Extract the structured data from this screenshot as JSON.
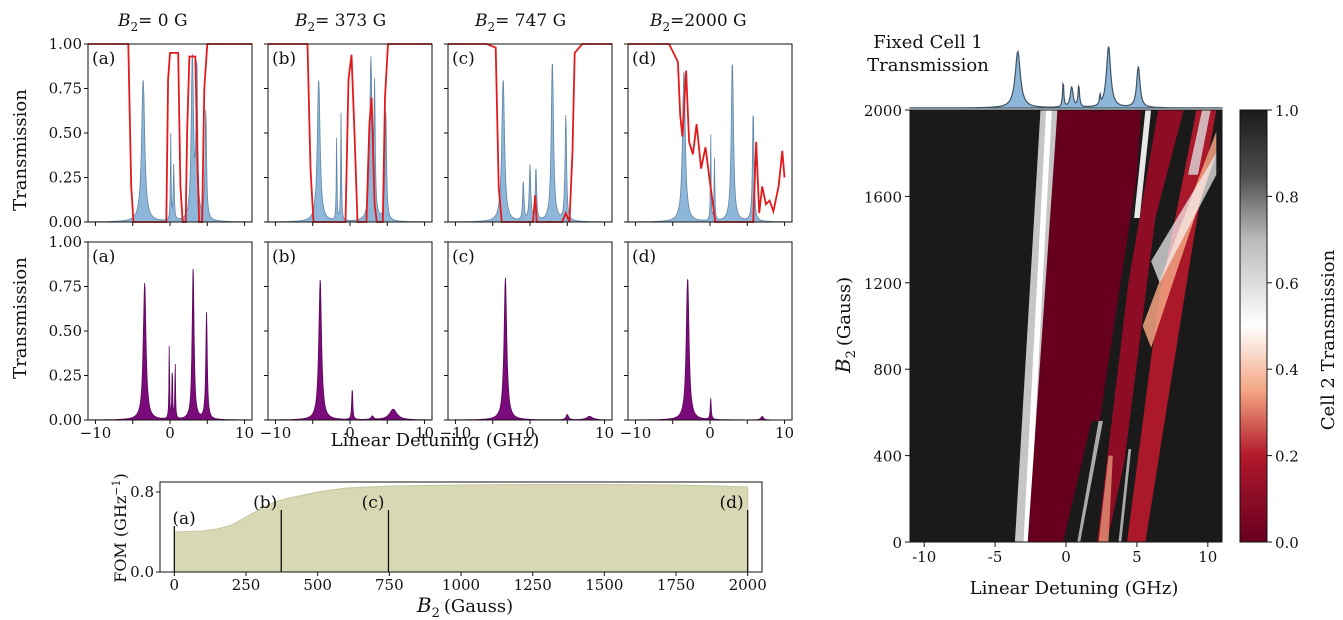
{
  "chart_data": [
    {
      "type": "line",
      "panel_group": "top-row",
      "ylabel": "Transmission",
      "xlim": [
        -11,
        11
      ],
      "ylim": [
        0,
        1
      ],
      "yticks": [
        "0.00",
        "0.25",
        "0.50",
        "0.75",
        "1.00"
      ],
      "panels": [
        {
          "label": "(a)",
          "title_var": "B",
          "title_sub": "2",
          "title_val": "= 0 G",
          "blue_peaks": [
            [
              -3.6,
              0.8,
              0.25
            ],
            [
              0.1,
              0.5,
              0.05
            ],
            [
              0.5,
              0.31,
              0.08
            ],
            [
              3.0,
              0.92,
              0.18
            ],
            [
              3.6,
              0.85,
              0.12
            ],
            [
              4.8,
              0.62,
              0.12
            ]
          ],
          "red_curve": [
            [
              -11,
              1.0
            ],
            [
              -5.6,
              1.0
            ],
            [
              -5.2,
              0.2
            ],
            [
              -4.9,
              0.0
            ],
            [
              -0.5,
              0.0
            ],
            [
              -0.25,
              0.8
            ],
            [
              0.0,
              0.95
            ],
            [
              1.1,
              0.95
            ],
            [
              1.4,
              0.2
            ],
            [
              1.7,
              0.0
            ],
            [
              2.1,
              0.0
            ],
            [
              2.3,
              0.5
            ],
            [
              2.6,
              0.93
            ],
            [
              3.4,
              0.93
            ],
            [
              3.7,
              0.3
            ],
            [
              3.9,
              0.0
            ],
            [
              4.3,
              0.0
            ],
            [
              4.6,
              0.75
            ],
            [
              5.0,
              1.0
            ],
            [
              11,
              1.0
            ]
          ]
        },
        {
          "label": "(b)",
          "title_var": "B",
          "title_sub": "2",
          "title_val": "= 373 G",
          "blue_peaks": [
            [
              -4.2,
              0.8,
              0.22
            ],
            [
              -1.8,
              0.5,
              0.05
            ],
            [
              -1.2,
              0.62,
              0.06
            ],
            [
              2.8,
              0.9,
              0.18
            ],
            [
              3.3,
              0.7,
              0.1
            ],
            [
              4.8,
              0.62,
              0.12
            ]
          ],
          "red_curve": [
            [
              -11,
              1.0
            ],
            [
              -5.7,
              1.0
            ],
            [
              -5.3,
              0.3
            ],
            [
              -4.9,
              0.0
            ],
            [
              -0.6,
              0.0
            ],
            [
              -0.2,
              0.8
            ],
            [
              0.2,
              0.94
            ],
            [
              0.6,
              0.5
            ],
            [
              1.0,
              0.0
            ],
            [
              2.2,
              0.0
            ],
            [
              2.6,
              0.55
            ],
            [
              2.9,
              0.7
            ],
            [
              3.3,
              0.1
            ],
            [
              3.6,
              0.0
            ],
            [
              4.4,
              0.0
            ],
            [
              4.7,
              0.7
            ],
            [
              5.1,
              1.0
            ],
            [
              11,
              1.0
            ]
          ]
        },
        {
          "label": "(c)",
          "title_var": "B",
          "title_sub": "2",
          "title_val": "= 747 G",
          "blue_peaks": [
            [
              -3.6,
              0.8,
              0.22
            ],
            [
              -0.9,
              0.22,
              0.1
            ],
            [
              0.0,
              0.31,
              0.12
            ],
            [
              0.8,
              0.3,
              0.1
            ],
            [
              3.0,
              0.9,
              0.18
            ],
            [
              4.8,
              0.6,
              0.12
            ]
          ],
          "red_curve": [
            [
              -11,
              1.0
            ],
            [
              -5.8,
              1.0
            ],
            [
              -4.6,
              0.98
            ],
            [
              -4.2,
              0.2
            ],
            [
              -3.8,
              0.0
            ],
            [
              0.4,
              0.0
            ],
            [
              0.7,
              0.15
            ],
            [
              0.9,
              0.0
            ],
            [
              4.3,
              0.0
            ],
            [
              4.8,
              0.05
            ],
            [
              5.3,
              0.0
            ],
            [
              5.7,
              0.4
            ],
            [
              6.0,
              0.95
            ],
            [
              7.0,
              1.0
            ],
            [
              11,
              1.0
            ]
          ]
        },
        {
          "label": "(d)",
          "title_var": "B",
          "title_sub": "2",
          "title_val": "=2000 G",
          "blue_peaks": [
            [
              -3.5,
              0.85,
              0.22
            ],
            [
              0.1,
              0.5,
              0.05
            ],
            [
              0.6,
              0.35,
              0.06
            ],
            [
              3.0,
              0.9,
              0.18
            ],
            [
              5.8,
              0.62,
              0.12
            ]
          ],
          "red_curve": [
            [
              -11,
              1.0
            ],
            [
              -5.5,
              1.0
            ],
            [
              -4.9,
              0.95
            ],
            [
              -4.3,
              0.9
            ],
            [
              -4.0,
              0.6
            ],
            [
              -3.7,
              0.48
            ],
            [
              -3.2,
              0.85
            ],
            [
              -2.8,
              0.45
            ],
            [
              -2.3,
              0.38
            ],
            [
              -1.8,
              0.55
            ],
            [
              -1.2,
              0.3
            ],
            [
              -0.6,
              0.42
            ],
            [
              0.0,
              0.22
            ],
            [
              0.4,
              0.1
            ],
            [
              0.7,
              0.0
            ],
            [
              5.8,
              0.0
            ],
            [
              6.2,
              0.45
            ],
            [
              6.6,
              0.05
            ],
            [
              7.0,
              0.2
            ],
            [
              7.5,
              0.1
            ],
            [
              8.0,
              0.12
            ],
            [
              8.5,
              0.06
            ],
            [
              9.2,
              0.2
            ],
            [
              9.7,
              0.4
            ],
            [
              10.0,
              0.25
            ]
          ]
        }
      ]
    },
    {
      "type": "area",
      "panel_group": "middle-row",
      "xlabel": "Linear Detuning (GHz)",
      "ylabel": "Transmission",
      "xlim": [
        -11,
        11
      ],
      "ylim": [
        0,
        1
      ],
      "xticks": [
        "−10",
        "0",
        "10"
      ],
      "yticks": [
        "0.00",
        "0.25",
        "0.50",
        "0.75",
        "1.00"
      ],
      "panels": [
        {
          "label": "(a)",
          "peaks": [
            [
              -3.4,
              0.77,
              0.22
            ],
            [
              -0.1,
              0.42,
              0.05
            ],
            [
              0.3,
              0.31,
              0.05
            ],
            [
              0.7,
              0.33,
              0.05
            ],
            [
              3.1,
              0.86,
              0.15
            ],
            [
              4.9,
              0.6,
              0.12
            ]
          ]
        },
        {
          "label": "(b)",
          "peaks": [
            [
              -4.0,
              0.79,
              0.22
            ],
            [
              0.3,
              0.18,
              0.08
            ],
            [
              3.0,
              0.02,
              0.2
            ],
            [
              5.8,
              0.06,
              0.6
            ]
          ]
        },
        {
          "label": "(c)",
          "peaks": [
            [
              -3.3,
              0.8,
              0.22
            ],
            [
              5.0,
              0.03,
              0.2
            ],
            [
              8.0,
              0.02,
              0.5
            ]
          ]
        },
        {
          "label": "(d)",
          "peaks": [
            [
              -3.0,
              0.8,
              0.22
            ],
            [
              0.1,
              0.12,
              0.08
            ],
            [
              7.0,
              0.02,
              0.2
            ]
          ]
        }
      ]
    },
    {
      "type": "area",
      "panel_group": "fom",
      "xlabel_var": "B",
      "xlabel_sub": "2",
      "xlabel_unit": "(Gauss)",
      "ylabel": "FOM (GHz",
      "ylabel_sup": "−1",
      "ylabel_close": ")",
      "xlim": [
        -50,
        2050
      ],
      "ylim": [
        0,
        0.9
      ],
      "xticks": [
        "0",
        "250",
        "500",
        "750",
        "1000",
        "1250",
        "1500",
        "1750",
        "2000"
      ],
      "yticks": [
        "0.0",
        "0.8"
      ],
      "x": [
        0,
        100,
        150,
        200,
        250,
        300,
        350,
        400,
        500,
        600,
        750,
        1000,
        1250,
        1500,
        1750,
        1900,
        2000
      ],
      "y": [
        0.4,
        0.41,
        0.43,
        0.47,
        0.55,
        0.63,
        0.7,
        0.74,
        0.8,
        0.84,
        0.86,
        0.87,
        0.875,
        0.875,
        0.87,
        0.86,
        0.85
      ],
      "markers": [
        {
          "label": "(a)",
          "x": 0,
          "y": 0.4
        },
        {
          "label": "(b)",
          "x": 373,
          "y": 0.56
        },
        {
          "label": "(c)",
          "x": 747,
          "y": 0.56
        },
        {
          "label": "(d)",
          "x": 2000,
          "y": 0.56
        }
      ]
    },
    {
      "type": "heatmap",
      "panel_group": "map",
      "top_title_line1": "Fixed Cell 1",
      "top_title_line2": "Transmission",
      "xlabel": "Linear Detuning (GHz)",
      "ylabel_var": "B",
      "ylabel_sub": "2",
      "ylabel_unit": "(Gauss)",
      "xlim": [
        -11,
        11
      ],
      "ylim": [
        0,
        2000
      ],
      "xticks": [
        "-10",
        "-5",
        "0",
        "5",
        "10"
      ],
      "yticks": [
        "0",
        "400",
        "800",
        "1200",
        "1600",
        "2000"
      ],
      "colorbar_label": "Cell 2 Transmission",
      "colorbar_ticks": [
        "0.0",
        "0.2",
        "0.4",
        "0.6",
        "0.8",
        "1.0"
      ],
      "colors": {
        "low": "#67001f",
        "mid": "#ffffff",
        "high": "#1a1a1a"
      },
      "top_peaks": [
        [
          -3.4,
          0.85,
          0.22
        ],
        [
          -0.2,
          0.4,
          0.05
        ],
        [
          0.4,
          0.31,
          0.12
        ],
        [
          0.9,
          0.33,
          0.06
        ],
        [
          2.4,
          0.16,
          0.04
        ],
        [
          3.0,
          0.92,
          0.18
        ],
        [
          5.1,
          0.62,
          0.14
        ]
      ],
      "stripes": [
        {
          "x0": -2.5,
          "x1": -0.9,
          "level": 0.55
        },
        {
          "x0": 5.2,
          "x1": 10.5,
          "level": 0.2
        }
      ]
    }
  ]
}
